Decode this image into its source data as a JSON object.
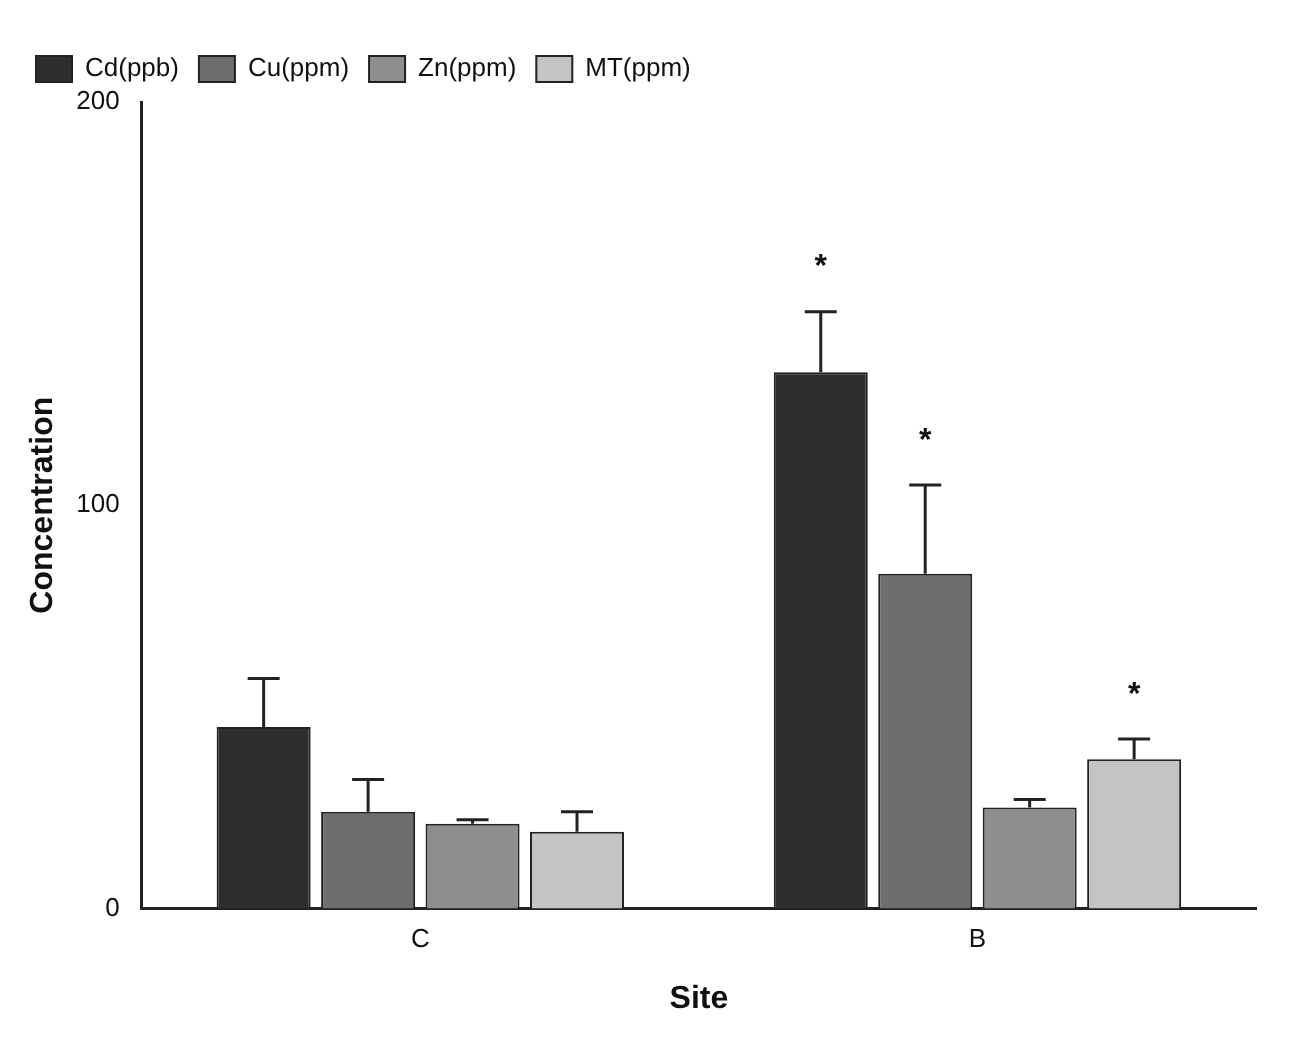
{
  "chart_data": {
    "type": "bar",
    "xlabel": "Site",
    "ylabel": "Concentration",
    "categories": [
      "C",
      "B"
    ],
    "series": [
      {
        "name": "Cd(ppb)",
        "color": "#2e2e2e",
        "values": [
          45,
          133
        ],
        "errors": [
          [
            45,
            57
          ],
          [
            133,
            148
          ]
        ]
      },
      {
        "name": "Cu(ppm)",
        "color": "#6e6e6e",
        "values": [
          24,
          83
        ],
        "errors": [
          [
            24,
            32
          ],
          [
            83,
            105
          ]
        ]
      },
      {
        "name": "Zn(ppm)",
        "color": "#8e8e8e",
        "values": [
          21,
          25
        ],
        "errors": [
          [
            21,
            22
          ],
          [
            25,
            27
          ]
        ]
      },
      {
        "name": "MT(ppm)",
        "color": "#c4c4c4",
        "values": [
          19,
          37
        ],
        "errors": [
          [
            19,
            24
          ],
          [
            37,
            42
          ]
        ]
      }
    ],
    "ylim": [
      0,
      200
    ],
    "yticks": [
      0,
      100,
      200
    ],
    "grid": false,
    "legend": "top left",
    "annotations": [
      "*",
      "*",
      "*"
    ]
  }
}
